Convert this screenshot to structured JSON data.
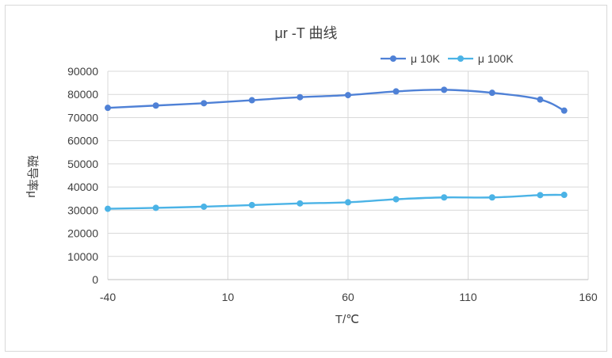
{
  "chart_data": {
    "type": "line",
    "title": "μr -T 曲线",
    "xlabel": "T/℃",
    "ylabel": "磁导率μ",
    "xlim": [
      -40,
      160
    ],
    "ylim": [
      0,
      90000
    ],
    "x_ticks": [
      -40,
      10,
      60,
      110,
      160
    ],
    "y_ticks": [
      0,
      10000,
      20000,
      30000,
      40000,
      50000,
      60000,
      70000,
      80000,
      90000
    ],
    "grid": true,
    "legend_position": "top-right",
    "series": [
      {
        "name": "μ 10K",
        "color": "#4f81d6",
        "x": [
          -40,
          -20,
          0,
          20,
          40,
          60,
          80,
          100,
          120,
          140,
          150
        ],
        "values": [
          74200,
          75200,
          76200,
          77500,
          78800,
          79700,
          81300,
          82000,
          80700,
          77800,
          73000
        ]
      },
      {
        "name": "μ 100K",
        "color": "#4bb3e6",
        "x": [
          -40,
          -20,
          0,
          20,
          40,
          60,
          80,
          100,
          120,
          140,
          150
        ],
        "values": [
          30600,
          31000,
          31500,
          32200,
          32900,
          33400,
          34700,
          35500,
          35500,
          36500,
          36600
        ]
      }
    ]
  }
}
